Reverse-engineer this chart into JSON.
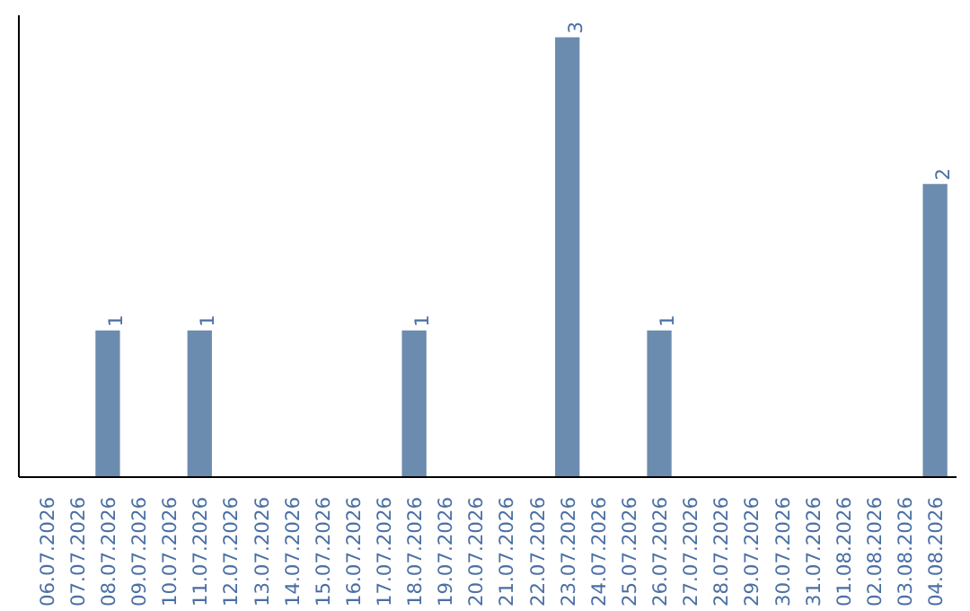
{
  "chart_data": {
    "type": "bar",
    "categories": [
      "06.07.2026",
      "07.07.2026",
      "08.07.2026",
      "09.07.2026",
      "10.07.2026",
      "11.07.2026",
      "12.07.2026",
      "13.07.2026",
      "14.07.2026",
      "15.07.2026",
      "16.07.2026",
      "17.07.2026",
      "18.07.2026",
      "19.07.2026",
      "20.07.2026",
      "21.07.2026",
      "22.07.2026",
      "23.07.2026",
      "24.07.2026",
      "25.07.2026",
      "26.07.2026",
      "27.07.2026",
      "28.07.2026",
      "29.07.2026",
      "30.07.2026",
      "31.07.2026",
      "01.08.2026",
      "02.08.2026",
      "03.08.2026",
      "04.08.2026"
    ],
    "values": [
      0,
      0,
      1,
      0,
      0,
      1,
      0,
      0,
      0,
      0,
      0,
      0,
      1,
      0,
      0,
      0,
      0,
      3,
      0,
      0,
      1,
      0,
      0,
      0,
      0,
      0,
      0,
      0,
      0,
      2
    ],
    "value_labels": [
      null,
      null,
      "1",
      null,
      null,
      "1",
      null,
      null,
      null,
      null,
      null,
      null,
      "1",
      null,
      null,
      null,
      null,
      "3",
      null,
      null,
      "1",
      null,
      null,
      null,
      null,
      null,
      null,
      null,
      null,
      "2"
    ],
    "color": "#6b8cae",
    "tick_labels": "x"
  }
}
